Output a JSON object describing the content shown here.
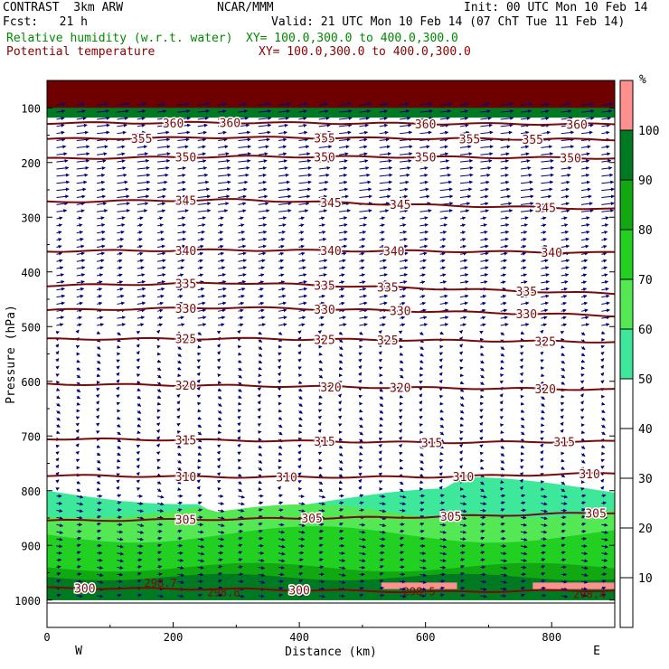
{
  "header": {
    "model": "CONTRAST  3km ARW",
    "forecast": "Fcst:   21 h",
    "org": "NCAR/MMM",
    "init": "Init: 00 UTC Mon 10 Feb 14",
    "valid": "Valid: 21 UTC Mon 10 Feb 14 (07 ChT Tue 11 Feb 14)",
    "field1": "Relative humidity (w.r.t. water)",
    "field1_xy": "XY= 100.0,300.0 to 400.0,300.0",
    "field2": "Potential temperature",
    "field2_xy": "XY= 100.0,300.0 to 400.0,300.0"
  },
  "colors": {
    "rh_label": "#008800",
    "theta_label": "#8b0000",
    "theta_line": "#7a0a0a",
    "wind": "#00007a",
    "rh_50_60": "#3ee89a",
    "rh_60_70": "#55e855",
    "rh_70_80": "#22d022",
    "rh_80_90": "#11a811",
    "rh_90_100": "#007a22",
    "rh_100plus": "#ff9090"
  },
  "chart_data": {
    "type": "cross-section",
    "xlabel": "Distance (km)",
    "ylabel": "Pressure (hPa)",
    "xlim": [
      0,
      900
    ],
    "ylim": [
      1050,
      50
    ],
    "x_ticks": [
      0,
      200,
      400,
      600,
      800
    ],
    "y_ticks": [
      100,
      200,
      300,
      400,
      500,
      600,
      700,
      800,
      900,
      1000
    ],
    "left_end_label": "W",
    "right_end_label": "E",
    "theta_contours": [
      {
        "value": 360,
        "pressure": [
          128,
          127,
          129,
          130
        ],
        "labels_x": [
          200,
          290,
          600,
          840
        ]
      },
      {
        "value": 355,
        "pressure": [
          157,
          154,
          156,
          158
        ],
        "labels_x": [
          150,
          440,
          670,
          770
        ]
      },
      {
        "value": 350,
        "pressure": [
          193,
          189,
          190,
          192
        ],
        "labels_x": [
          220,
          440,
          600,
          830
        ]
      },
      {
        "value": 345,
        "pressure": [
          272,
          268,
          278,
          285
        ],
        "labels_x": [
          220,
          450,
          560,
          790
        ]
      },
      {
        "value": 340,
        "pressure": [
          362,
          360,
          362,
          365
        ],
        "labels_x": [
          220,
          450,
          550,
          800
        ]
      },
      {
        "value": 335,
        "pressure": [
          425,
          420,
          430,
          440
        ],
        "labels_x": [
          220,
          440,
          540,
          760
        ]
      },
      {
        "value": 330,
        "pressure": [
          470,
          465,
          472,
          480
        ],
        "labels_x": [
          220,
          440,
          560,
          760
        ]
      },
      {
        "value": 325,
        "pressure": [
          523,
          522,
          525,
          528
        ],
        "labels_x": [
          220,
          440,
          540,
          790
        ]
      },
      {
        "value": 320,
        "pressure": [
          605,
          608,
          612,
          615
        ],
        "labels_x": [
          220,
          450,
          560,
          790
        ]
      },
      {
        "value": 315,
        "pressure": [
          705,
          708,
          712,
          710
        ],
        "labels_x": [
          220,
          440,
          610,
          820
        ]
      },
      {
        "value": 310,
        "pressure": [
          772,
          775,
          775,
          768
        ],
        "labels_x": [
          220,
          380,
          660,
          860
        ]
      },
      {
        "value": 305,
        "pressure": [
          855,
          852,
          848,
          840
        ],
        "labels_x": [
          220,
          420,
          640,
          870
        ]
      },
      {
        "value": 300,
        "pressure": [
          978,
          980,
          985,
          982
        ],
        "labels_x": [
          60,
          400
        ]
      }
    ],
    "extra_labels": [
      {
        "text": "298.7",
        "x": 180,
        "p": 967
      },
      {
        "text": "298.8",
        "x": 280,
        "p": 985
      },
      {
        "text": "298.5",
        "x": 590,
        "p": 983
      },
      {
        "text": "298.4",
        "x": 860,
        "p": 988
      }
    ],
    "colorbar": {
      "unit": "%",
      "levels": [
        0,
        10,
        20,
        30,
        40,
        50,
        60,
        70,
        80,
        90,
        100
      ],
      "labels": [
        "10",
        "20",
        "30",
        "40",
        "50",
        "60",
        "70",
        "80",
        "90",
        "100"
      ]
    }
  }
}
